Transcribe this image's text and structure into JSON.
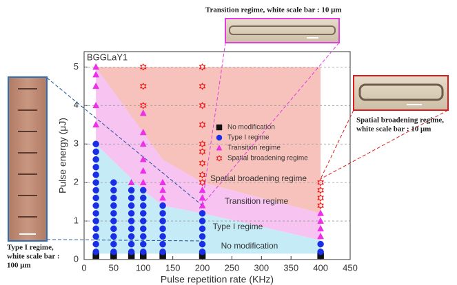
{
  "chart_data": {
    "type": "scatter",
    "xlabel": "Pulse repetition rate (KHz)",
    "ylabel": "Pulse energy (μJ)",
    "sample_label": "BGGLaY1",
    "xlim": [
      0,
      450
    ],
    "ylim": [
      0,
      5.4
    ],
    "xticks": [
      0,
      50,
      100,
      150,
      200,
      250,
      300,
      350,
      400,
      450
    ],
    "yticks": [
      0,
      1,
      2,
      3,
      4,
      5
    ],
    "grid": "y",
    "legend": "center",
    "regions": [
      {
        "label": "Transition regime",
        "color": "#f7c3f1",
        "x": [
          20,
          20,
          200,
          400,
          400,
          200,
          133,
          100
        ],
        "y": [
          3.0,
          5.0,
          2.0,
          1.2,
          0.5,
          1.2,
          1.4,
          1.8
        ]
      },
      {
        "label": "Spatial broadening regime",
        "color": "#f8c2bc",
        "x": [
          20,
          400,
          400,
          200,
          133
        ],
        "y": [
          5.0,
          5.0,
          1.2,
          2.0,
          2.6
        ]
      },
      {
        "label": "Type I regime",
        "color": "#c4ebf6",
        "x": [
          20,
          20,
          100,
          133,
          200,
          400,
          400
        ],
        "y": [
          0.15,
          3.0,
          1.8,
          1.4,
          1.2,
          0.5,
          0.15
        ]
      },
      {
        "label": "No modification",
        "color": "#ffffff",
        "x": [
          20,
          400,
          400,
          20
        ],
        "y": [
          0.15,
          0.15,
          0.05,
          0.05
        ]
      }
    ],
    "series": [
      {
        "name": "No modification",
        "color": "#111111",
        "marker": "square",
        "x": [
          20,
          50,
          80,
          100,
          133,
          200,
          400
        ],
        "y": [
          0.1,
          0.1,
          0.1,
          0.1,
          0.1,
          0.1,
          0.1
        ]
      },
      {
        "name": "Type I regime",
        "color": "#1a2ee6",
        "marker": "circle",
        "x": [
          20,
          20,
          20,
          20,
          20,
          20,
          20,
          20,
          20,
          20,
          20,
          20,
          20,
          20,
          20,
          50,
          50,
          50,
          50,
          50,
          50,
          50,
          50,
          50,
          50,
          80,
          80,
          80,
          80,
          80,
          80,
          80,
          80,
          80,
          100,
          100,
          100,
          100,
          100,
          100,
          100,
          100,
          100,
          133,
          133,
          133,
          133,
          133,
          133,
          133,
          200,
          200,
          200,
          200,
          200,
          200,
          400,
          400
        ],
        "y": [
          0.2,
          0.4,
          0.6,
          0.8,
          1.0,
          1.2,
          1.4,
          1.6,
          1.8,
          2.0,
          2.2,
          2.4,
          2.6,
          2.8,
          3.0,
          0.2,
          0.4,
          0.6,
          0.8,
          1.0,
          1.2,
          1.4,
          1.6,
          1.8,
          2.0,
          0.2,
          0.4,
          0.6,
          0.8,
          1.0,
          1.2,
          1.4,
          1.6,
          1.8,
          0.2,
          0.4,
          0.6,
          0.8,
          1.0,
          1.2,
          1.4,
          1.6,
          1.8,
          0.2,
          0.4,
          0.6,
          0.8,
          1.0,
          1.2,
          1.4,
          0.2,
          0.4,
          0.6,
          0.8,
          1.0,
          1.2,
          0.2,
          0.4
        ]
      },
      {
        "name": "Transition regime",
        "color": "#ee2fe8",
        "marker": "triangle",
        "x": [
          20,
          20,
          20,
          20,
          20,
          80,
          100,
          100,
          100,
          100,
          100,
          100,
          133,
          133,
          133,
          200,
          200,
          200,
          400,
          400,
          400,
          400
        ],
        "y": [
          3.5,
          4.0,
          4.5,
          4.8,
          5.0,
          2.0,
          2.0,
          2.3,
          2.6,
          3.0,
          3.3,
          3.8,
          1.6,
          1.8,
          2.0,
          1.4,
          1.6,
          1.8,
          0.6,
          0.8,
          1.0,
          1.2
        ]
      },
      {
        "name": "Spatial broadening regime",
        "color": "#ee1c1c",
        "marker": "star",
        "x": [
          100,
          100,
          100,
          200,
          200,
          200,
          200,
          200,
          200,
          200,
          200,
          200,
          400,
          400,
          400,
          400
        ],
        "y": [
          4.0,
          4.5,
          5.0,
          2.0,
          2.2,
          2.5,
          2.8,
          3.0,
          3.5,
          4.0,
          4.5,
          5.0,
          1.4,
          1.6,
          1.8,
          2.0
        ]
      }
    ]
  },
  "insets": [
    {
      "lines": [
        "Transition regime, white scale bar : 10 μm"
      ]
    },
    {
      "lines": [
        "Spatial broadening regime,",
        "white scale bar : 10 μm"
      ]
    },
    {
      "lines": [
        "Type I regime,",
        "white scale bar :",
        "100 μm"
      ]
    }
  ]
}
